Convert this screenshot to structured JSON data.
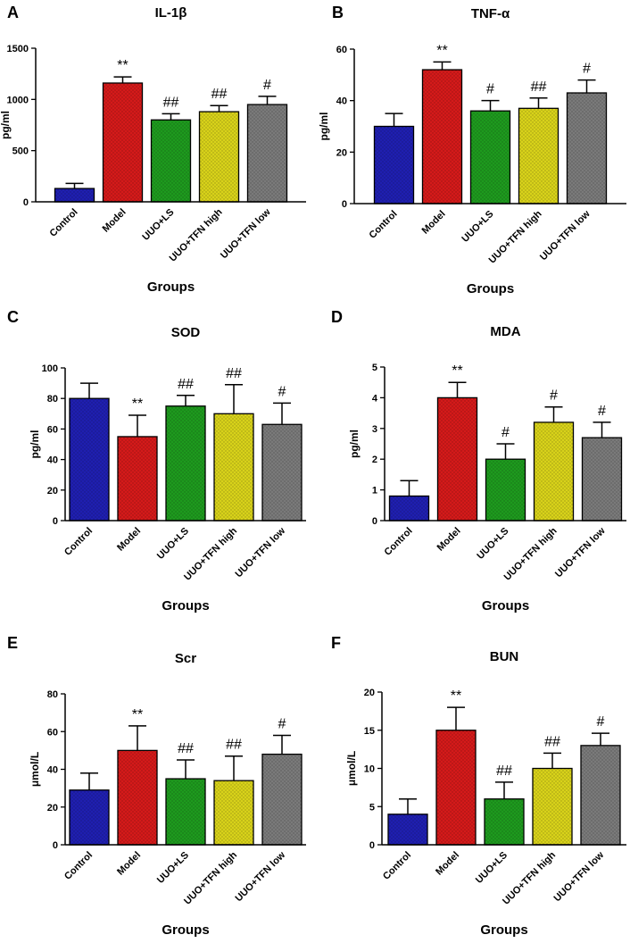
{
  "figure": {
    "groups": [
      "Control",
      "Model",
      "UUO+LS",
      "UUO+TFN high",
      "UUO+TFN low"
    ],
    "colors": [
      "#1f1fb0",
      "#d41a1a",
      "#1e9a1e",
      "#d8d21a",
      "#7a7a7a"
    ],
    "xlabel": "Groups"
  },
  "chart_data": [
    {
      "type": "bar",
      "panel": "A",
      "title": "IL-1β",
      "ylabel": "pg/ml",
      "xlabel": "Groups",
      "categories": [
        "Control",
        "Model",
        "UUO+LS",
        "UUO+TFN high",
        "UUO+TFN low"
      ],
      "values": [
        130,
        1160,
        800,
        880,
        950
      ],
      "errors": [
        50,
        60,
        60,
        60,
        80
      ],
      "annotations": [
        "",
        "**",
        "##",
        "##",
        "#"
      ],
      "ylim": [
        0,
        1500
      ],
      "yticks": [
        0,
        500,
        1000,
        1500
      ]
    },
    {
      "type": "bar",
      "panel": "B",
      "title": "TNF-α",
      "ylabel": "pg/ml",
      "xlabel": "Groups",
      "categories": [
        "Control",
        "Model",
        "UUO+LS",
        "UUO+TFN high",
        "UUO+TFN low"
      ],
      "values": [
        30,
        52,
        36,
        37,
        43
      ],
      "errors": [
        5,
        3,
        4,
        4,
        5
      ],
      "annotations": [
        "",
        "**",
        "#",
        "##",
        "#"
      ],
      "ylim": [
        0,
        60
      ],
      "yticks": [
        0,
        20,
        40,
        60
      ]
    },
    {
      "type": "bar",
      "panel": "C",
      "title": "SOD",
      "ylabel": "pg/ml",
      "xlabel": "Groups",
      "categories": [
        "Control",
        "Model",
        "UUO+LS",
        "UUO+TFN high",
        "UUO+TFN low"
      ],
      "values": [
        80,
        55,
        75,
        70,
        63
      ],
      "errors": [
        10,
        14,
        7,
        19,
        14
      ],
      "annotations": [
        "",
        "**",
        "##",
        "##",
        "#"
      ],
      "ylim": [
        0,
        100
      ],
      "yticks": [
        0,
        20,
        40,
        60,
        80,
        100
      ]
    },
    {
      "type": "bar",
      "panel": "D",
      "title": "MDA",
      "ylabel": "pg/ml",
      "xlabel": "Groups",
      "categories": [
        "Control",
        "Model",
        "UUO+LS",
        "UUO+TFN high",
        "UUO+TFN low"
      ],
      "values": [
        0.8,
        4.0,
        2.0,
        3.2,
        2.7
      ],
      "errors": [
        0.5,
        0.5,
        0.5,
        0.5,
        0.5
      ],
      "annotations": [
        "",
        "**",
        "#",
        "#",
        "#"
      ],
      "ylim": [
        0,
        5
      ],
      "yticks": [
        0,
        1,
        2,
        3,
        4,
        5
      ]
    },
    {
      "type": "bar",
      "panel": "E",
      "title": "Scr",
      "ylabel": "μmol/L",
      "xlabel": "Groups",
      "categories": [
        "Control",
        "Model",
        "UUO+LS",
        "UUO+TFN high",
        "UUO+TFN low"
      ],
      "values": [
        29,
        50,
        35,
        34,
        48
      ],
      "errors": [
        9,
        13,
        10,
        13,
        10
      ],
      "annotations": [
        "",
        "**",
        "##",
        "##",
        "#"
      ],
      "ylim": [
        0,
        80
      ],
      "yticks": [
        0,
        20,
        40,
        60,
        80
      ]
    },
    {
      "type": "bar",
      "panel": "F",
      "title": "BUN",
      "ylabel": "μmol/L",
      "xlabel": "Groups",
      "categories": [
        "Control",
        "Model",
        "UUO+LS",
        "UUO+TFN high",
        "UUO+TFN low"
      ],
      "values": [
        4,
        15,
        6,
        10,
        13
      ],
      "errors": [
        2,
        3,
        2.2,
        2,
        1.6
      ],
      "annotations": [
        "",
        "**",
        "##",
        "##",
        "#"
      ],
      "ylim": [
        0,
        20
      ],
      "yticks": [
        0,
        5,
        10,
        15,
        20
      ]
    }
  ]
}
